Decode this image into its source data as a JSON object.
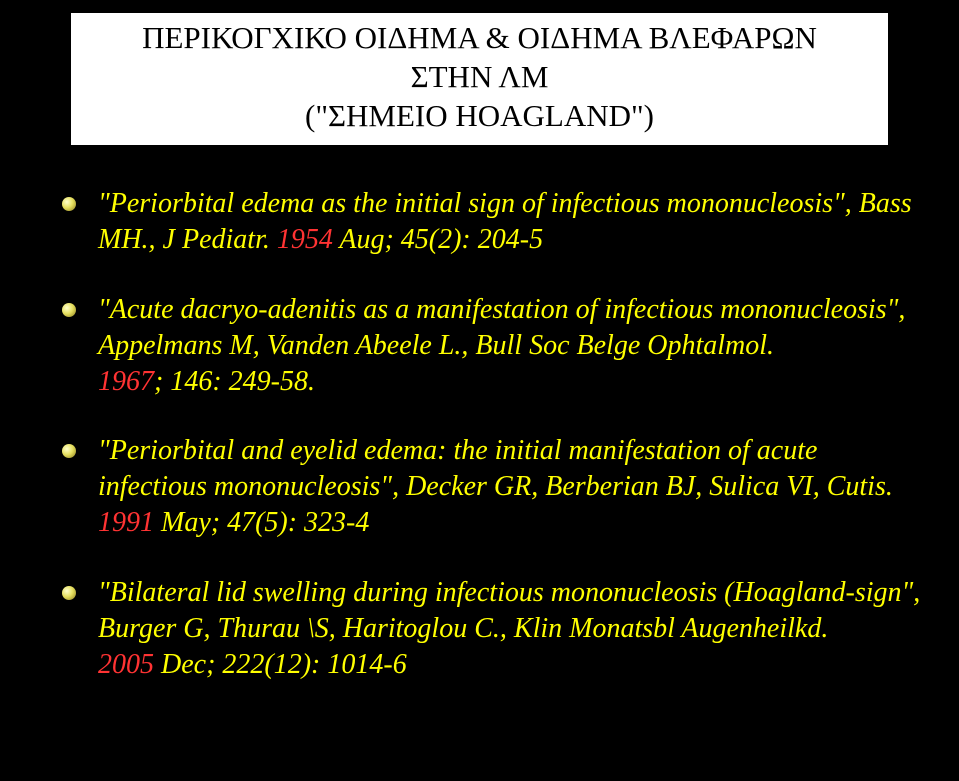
{
  "slide": {
    "background_color": "#000000",
    "title_box": {
      "background_color": "#ffffff",
      "text_color": "#000000",
      "fontsize": 31,
      "line1": "ΠΕΡΙΚΟΓΧΙΚΟ ΟΙΔΗΜΑ & ΟΙΔΗΜΑ ΒΛΕΦΑΡΩΝ",
      "line2": "ΣΤΗΝ ΛΜ",
      "line3": "(\"ΣΗΜΕΙΟ HOAGLAND\")"
    },
    "body": {
      "text_color": "#ffff00",
      "highlight_color": "#ff3333",
      "fontsize": 28,
      "font_style": "italic",
      "bullet_color_gradient": [
        "#ffffcc",
        "#e6e060",
        "#8a7a1a"
      ]
    },
    "citations": [
      {
        "title": "\"Periorbital edema as the initial sign of infectious mononucleosis\"",
        "authors": "Bass MH.",
        "journal": "J Pediatr.",
        "year": "1954",
        "loc": "Aug; 45(2): 204-5"
      },
      {
        "title": "\"Acute dacryo-adenitis as a manifestation of infectious mononucleosis\"",
        "authors": "Appelmans M, Vanden Abeele L.",
        "journal": "Bull Soc Belge Ophtalmol.",
        "year": "1967",
        "loc": "; 146: 249-58."
      },
      {
        "title": "\"Periorbital and eyelid edema: the initial manifestation of acute infectious mononucleosis\"",
        "authors": "Decker GR, Berberian BJ, Sulica VI",
        "journal": "Cutis.",
        "year": "1991",
        "loc": "May; 47(5): 323-4"
      },
      {
        "title": "\"Bilateral lid swelling during infectious mononucleosis (Hoagland-sign\"",
        "authors": "Burger G, Thurau \\S, Haritoglou C.",
        "journal": "Klin Monatsbl Augenheilkd.",
        "year": "2005",
        "loc": "Dec; 222(12): 1014-6"
      }
    ]
  }
}
